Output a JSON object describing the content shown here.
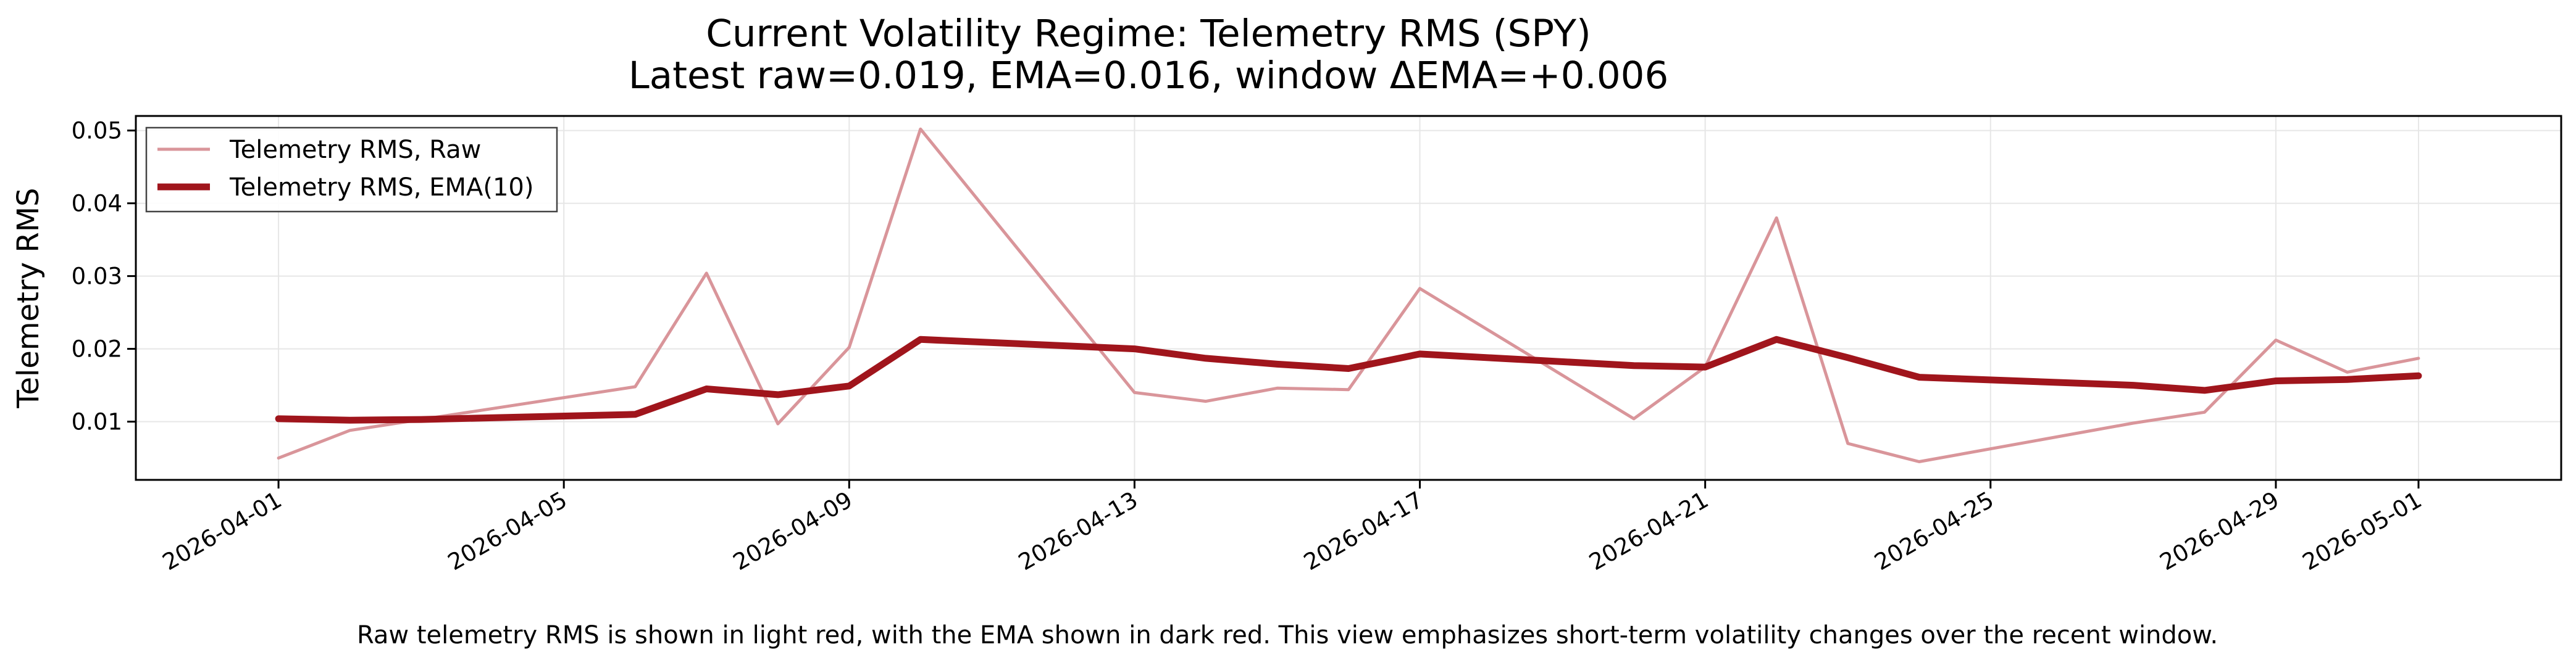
{
  "chart_data": {
    "type": "line",
    "title": "Current Volatility Regime: Telemetry RMS (SPY)",
    "subtitle": "Latest raw=0.019, EMA=0.016, window ΔEMA=+0.006",
    "xlabel": "",
    "ylabel": "Telemetry RMS",
    "xlim": [
      "2026-03-30",
      "2026-05-03"
    ],
    "ylim": [
      0.002,
      0.052
    ],
    "x_ticks": [
      "2026-04-01",
      "2026-04-05",
      "2026-04-09",
      "2026-04-13",
      "2026-04-17",
      "2026-04-21",
      "2026-04-25",
      "2026-04-29",
      "2026-05-01"
    ],
    "y_ticks": [
      0.01,
      0.02,
      0.03,
      0.04,
      0.05
    ],
    "y_tick_labels": [
      "0.01",
      "0.02",
      "0.03",
      "0.04",
      "0.05"
    ],
    "grid": true,
    "legend_position": "top-left",
    "x": [
      "2026-04-01",
      "2026-04-02",
      "2026-04-03",
      "2026-04-06",
      "2026-04-07",
      "2026-04-08",
      "2026-04-09",
      "2026-04-10",
      "2026-04-13",
      "2026-04-14",
      "2026-04-15",
      "2026-04-16",
      "2026-04-17",
      "2026-04-20",
      "2026-04-21",
      "2026-04-22",
      "2026-04-23",
      "2026-04-24",
      "2026-04-27",
      "2026-04-28",
      "2026-04-29",
      "2026-04-30",
      "2026-05-01"
    ],
    "series": [
      {
        "name": "Telemetry RMS, Raw",
        "color": "#d9959a",
        "values": [
          0.005,
          0.0088,
          0.0103,
          0.0148,
          0.0304,
          0.0097,
          0.0202,
          0.0502,
          0.014,
          0.0128,
          0.0146,
          0.0144,
          0.0283,
          0.0104,
          0.0175,
          0.038,
          0.007,
          0.0045,
          0.0098,
          0.0113,
          0.0212,
          0.0168,
          0.0187
        ]
      },
      {
        "name": "Telemetry RMS, EMA(10)",
        "color": "#a0151c",
        "values": [
          0.0104,
          0.0102,
          0.0103,
          0.011,
          0.0145,
          0.0137,
          0.0149,
          0.0213,
          0.02,
          0.0187,
          0.0179,
          0.0173,
          0.0193,
          0.0177,
          0.0175,
          0.0213,
          0.0188,
          0.0161,
          0.015,
          0.0143,
          0.0156,
          0.0158,
          0.0163
        ]
      }
    ],
    "caption": "Raw telemetry RMS is shown in light red, with the EMA shown in dark red. This view emphasizes short-term volatility changes over the recent window."
  }
}
